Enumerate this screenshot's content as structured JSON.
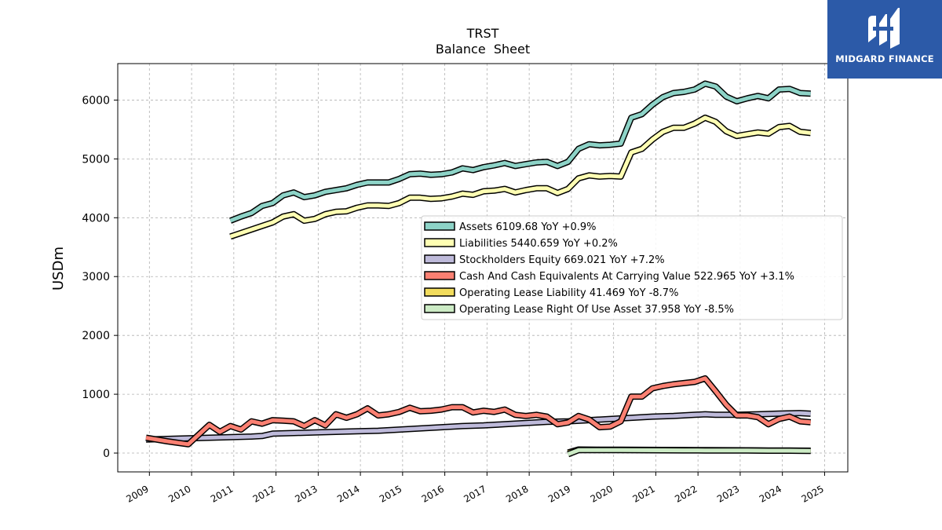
{
  "chart_data": {
    "type": "line",
    "title": "TRST",
    "subtitle": "Balance  Sheet",
    "ylabel": "USDm",
    "xlabel": "",
    "xlim": [
      2008.25,
      2025.55
    ],
    "ylim": [
      -320,
      6620
    ],
    "x_ticks": [
      "2009",
      "2010",
      "2011",
      "2012",
      "2013",
      "2014",
      "2015",
      "2016",
      "2017",
      "2018",
      "2019",
      "2020",
      "2021",
      "2022",
      "2023",
      "2024",
      "2025"
    ],
    "y_ticks": [
      "0",
      "1000",
      "2000",
      "3000",
      "4000",
      "5000",
      "6000"
    ],
    "grid": true,
    "legend_position": "center-right",
    "series": [
      {
        "name": "Assets",
        "legend": "Assets  6109.68 YoY +0.9%",
        "color": "#8dd3c7",
        "x": [
          2010.92,
          2011.17,
          2011.42,
          2011.67,
          2011.92,
          2012.17,
          2012.42,
          2012.67,
          2012.92,
          2013.17,
          2013.42,
          2013.67,
          2013.92,
          2014.17,
          2014.42,
          2014.67,
          2014.92,
          2015.17,
          2015.42,
          2015.67,
          2015.92,
          2016.17,
          2016.42,
          2016.67,
          2016.92,
          2017.17,
          2017.42,
          2017.67,
          2017.92,
          2018.17,
          2018.42,
          2018.67,
          2018.92,
          2019.17,
          2019.42,
          2019.67,
          2019.92,
          2020.17,
          2020.42,
          2020.67,
          2020.92,
          2021.17,
          2021.42,
          2021.67,
          2021.92,
          2022.17,
          2022.42,
          2022.67,
          2022.92,
          2023.17,
          2023.42,
          2023.67,
          2023.92,
          2024.17,
          2024.42,
          2024.67
        ],
        "y": [
          3950,
          4020,
          4080,
          4200,
          4250,
          4380,
          4430,
          4350,
          4380,
          4440,
          4470,
          4500,
          4560,
          4600,
          4600,
          4600,
          4660,
          4740,
          4750,
          4730,
          4740,
          4770,
          4840,
          4810,
          4860,
          4890,
          4930,
          4880,
          4910,
          4940,
          4950,
          4880,
          4950,
          5170,
          5250,
          5230,
          5240,
          5260,
          5700,
          5760,
          5920,
          6050,
          6120,
          6140,
          6180,
          6280,
          6230,
          6060,
          5980,
          6030,
          6070,
          6030,
          6180,
          6190,
          6120,
          6110
        ]
      },
      {
        "name": "Liabilities",
        "legend": "Liabilities  5440.659 YoY +0.2%",
        "color": "#ffffb3",
        "x": [
          2010.92,
          2011.17,
          2011.42,
          2011.67,
          2011.92,
          2012.17,
          2012.42,
          2012.67,
          2012.92,
          2013.17,
          2013.42,
          2013.67,
          2013.92,
          2014.17,
          2014.42,
          2014.67,
          2014.92,
          2015.17,
          2015.42,
          2015.67,
          2015.92,
          2016.17,
          2016.42,
          2016.67,
          2016.92,
          2017.17,
          2017.42,
          2017.67,
          2017.92,
          2018.17,
          2018.42,
          2018.67,
          2018.92,
          2019.17,
          2019.42,
          2019.67,
          2019.92,
          2020.17,
          2020.42,
          2020.67,
          2020.92,
          2021.17,
          2021.42,
          2021.67,
          2021.92,
          2022.17,
          2022.42,
          2022.67,
          2022.92,
          2023.17,
          2023.42,
          2023.67,
          2023.92,
          2024.17,
          2024.42,
          2024.67
        ],
        "y": [
          3680,
          3740,
          3800,
          3860,
          3920,
          4020,
          4060,
          3950,
          3980,
          4060,
          4100,
          4110,
          4170,
          4210,
          4210,
          4200,
          4250,
          4340,
          4340,
          4320,
          4330,
          4360,
          4410,
          4390,
          4450,
          4460,
          4490,
          4430,
          4470,
          4500,
          4500,
          4420,
          4490,
          4670,
          4720,
          4700,
          4710,
          4700,
          5110,
          5170,
          5330,
          5460,
          5530,
          5530,
          5600,
          5700,
          5630,
          5470,
          5390,
          5420,
          5450,
          5430,
          5540,
          5560,
          5460,
          5440
        ]
      },
      {
        "name": "Stockholders Equity",
        "legend": "Stockholders Equity  669.021 YoY +7.2%",
        "color": "#bebada",
        "x": [
          2008.92,
          2009.42,
          2009.92,
          2010.42,
          2010.92,
          2011.42,
          2011.67,
          2011.92,
          2012.42,
          2012.92,
          2013.42,
          2013.92,
          2014.42,
          2014.92,
          2015.42,
          2015.92,
          2016.42,
          2016.92,
          2017.42,
          2017.92,
          2018.42,
          2018.92,
          2019.42,
          2019.92,
          2020.42,
          2020.92,
          2021.42,
          2021.92,
          2022.17,
          2022.42,
          2022.92,
          2023.42,
          2023.92,
          2024.42,
          2024.67
        ],
        "y": [
          230,
          240,
          250,
          260,
          270,
          280,
          290,
          330,
          340,
          350,
          360,
          370,
          380,
          400,
          420,
          440,
          460,
          470,
          490,
          510,
          530,
          540,
          560,
          580,
          600,
          620,
          630,
          650,
          660,
          650,
          650,
          660,
          670,
          680,
          669
        ]
      },
      {
        "name": "Cash And Cash Equivalents At Carrying Value",
        "legend": "Cash And Cash Equivalents At Carrying Value  522.965 YoY +3.1%",
        "color": "#fb8072",
        "x": [
          2008.92,
          2009.42,
          2009.92,
          2010.42,
          2010.67,
          2010.92,
          2011.17,
          2011.42,
          2011.67,
          2011.92,
          2012.17,
          2012.42,
          2012.67,
          2012.92,
          2013.17,
          2013.42,
          2013.67,
          2013.92,
          2014.17,
          2014.42,
          2014.67,
          2014.92,
          2015.17,
          2015.42,
          2015.67,
          2015.92,
          2016.17,
          2016.42,
          2016.67,
          2016.92,
          2017.17,
          2017.42,
          2017.67,
          2017.92,
          2018.17,
          2018.42,
          2018.67,
          2018.92,
          2019.17,
          2019.42,
          2019.67,
          2019.92,
          2020.17,
          2020.42,
          2020.67,
          2020.92,
          2021.17,
          2021.42,
          2021.67,
          2021.92,
          2022.17,
          2022.42,
          2022.67,
          2022.92,
          2023.17,
          2023.42,
          2023.67,
          2023.92,
          2024.17,
          2024.42,
          2024.67
        ],
        "y": [
          260,
          200,
          150,
          480,
          360,
          460,
          400,
          540,
          500,
          560,
          550,
          540,
          460,
          560,
          470,
          660,
          600,
          660,
          760,
          640,
          660,
          700,
          770,
          710,
          720,
          740,
          780,
          780,
          690,
          720,
          700,
          740,
          650,
          630,
          650,
          620,
          490,
          520,
          630,
          570,
          440,
          450,
          540,
          960,
          960,
          1100,
          1140,
          1170,
          1190,
          1210,
          1270,
          1050,
          820,
          640,
          640,
          610,
          490,
          580,
          620,
          540,
          523
        ]
      },
      {
        "name": "Operating Lease Liability",
        "legend": "Operating Lease Liability  41.469 YoY -8.7%",
        "color": "#f2dc5d",
        "x": [
          2018.92,
          2019.17,
          2019.67,
          2020.17,
          2020.67,
          2021.17,
          2021.67,
          2022.17,
          2022.67,
          2023.17,
          2023.67,
          2024.17,
          2024.67
        ],
        "y": [
          10,
          60,
          58,
          56,
          55,
          54,
          52,
          50,
          48,
          47,
          45,
          43,
          41
        ]
      },
      {
        "name": "Operating Lease Right Of Use Asset",
        "legend": "Operating Lease Right Of Use Asset  37.958 YoY -8.5%",
        "color": "#ccebc5",
        "x": [
          2018.92,
          2019.17,
          2019.67,
          2020.17,
          2020.67,
          2021.17,
          2021.67,
          2022.17,
          2022.67,
          2023.17,
          2023.67,
          2024.17,
          2024.67
        ],
        "y": [
          -20,
          50,
          50,
          50,
          48,
          47,
          46,
          45,
          44,
          43,
          41,
          40,
          38
        ]
      }
    ]
  },
  "logo": {
    "text": "MIDGARD FINANCE",
    "color": "#2c5aa8"
  }
}
